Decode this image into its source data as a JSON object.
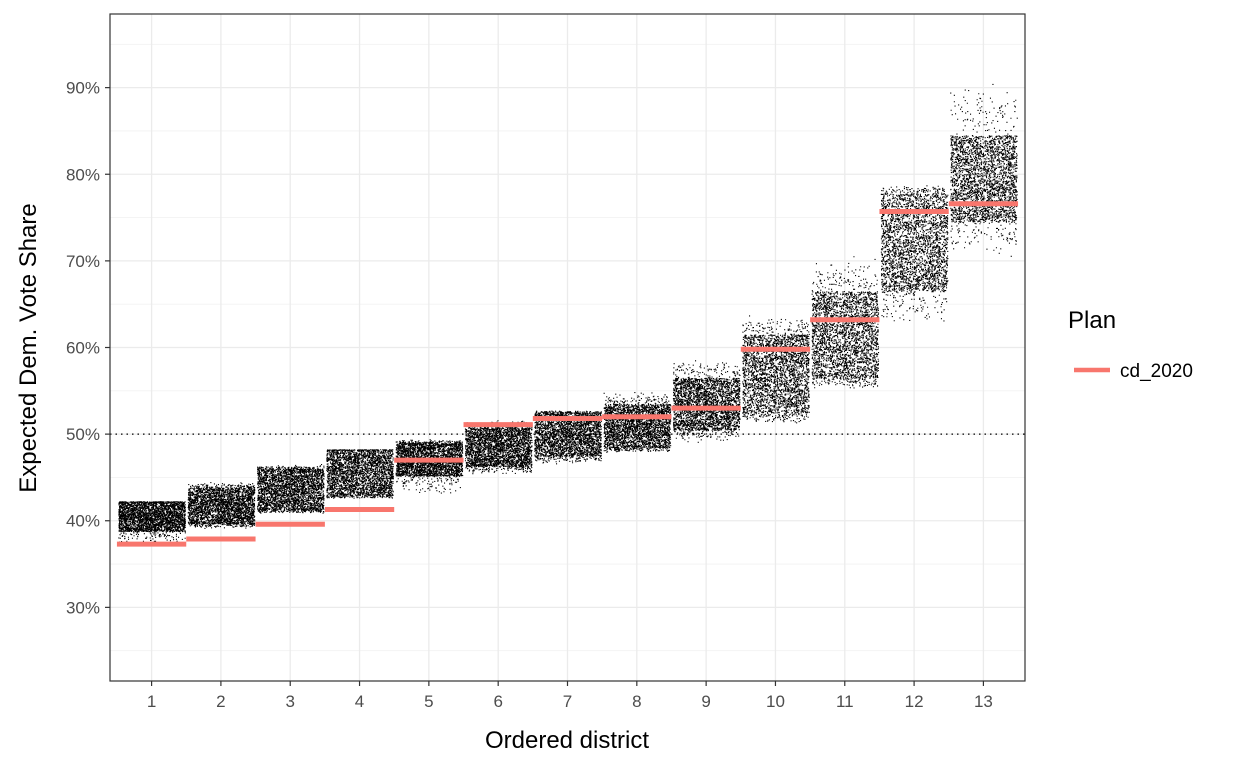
{
  "chart_data": {
    "type": "scatter",
    "title": "",
    "xlabel": "Ordered district",
    "ylabel": "Expected Dem. Vote Share",
    "categories": [
      "1",
      "2",
      "3",
      "4",
      "5",
      "6",
      "7",
      "8",
      "9",
      "10",
      "11",
      "12",
      "13"
    ],
    "ylim": [
      0.215,
      0.985
    ],
    "yticks": [
      0.3,
      0.4,
      0.5,
      0.6,
      0.7,
      0.8,
      0.9
    ],
    "ytick_labels": [
      "30%",
      "40%",
      "50%",
      "60%",
      "70%",
      "80%",
      "90%"
    ],
    "reference_line": {
      "y": 0.5,
      "style": "dotted"
    },
    "grid": true,
    "simulations": {
      "name": "",
      "color": "#000000",
      "ranges": [
        {
          "district": "1",
          "min": 0.365,
          "max": 0.423,
          "core_min": 0.388,
          "core_max": 0.422
        },
        {
          "district": "2",
          "min": 0.39,
          "max": 0.447,
          "core_min": 0.397,
          "core_max": 0.438
        },
        {
          "district": "3",
          "min": 0.408,
          "max": 0.467,
          "core_min": 0.413,
          "core_max": 0.46
        },
        {
          "district": "4",
          "min": 0.425,
          "max": 0.483,
          "core_min": 0.43,
          "core_max": 0.482
        },
        {
          "district": "5",
          "min": 0.425,
          "max": 0.495,
          "core_min": 0.452,
          "core_max": 0.49
        },
        {
          "district": "6",
          "min": 0.452,
          "max": 0.518,
          "core_min": 0.463,
          "core_max": 0.508
        },
        {
          "district": "7",
          "min": 0.465,
          "max": 0.528,
          "core_min": 0.475,
          "core_max": 0.525
        },
        {
          "district": "8",
          "min": 0.478,
          "max": 0.555,
          "core_min": 0.485,
          "core_max": 0.535
        },
        {
          "district": "9",
          "min": 0.488,
          "max": 0.593,
          "core_min": 0.505,
          "core_max": 0.565
        },
        {
          "district": "10",
          "min": 0.508,
          "max": 0.645,
          "core_min": 0.525,
          "core_max": 0.615
        },
        {
          "district": "11",
          "min": 0.548,
          "max": 0.712,
          "core_min": 0.565,
          "core_max": 0.665
        },
        {
          "district": "12",
          "min": 0.612,
          "max": 0.792,
          "core_min": 0.665,
          "core_max": 0.778
        },
        {
          "district": "13",
          "min": 0.695,
          "max": 0.925,
          "core_min": 0.745,
          "core_max": 0.845
        }
      ]
    },
    "series": [
      {
        "name": "cd_2020",
        "color": "#F8766D",
        "values": [
          0.373,
          0.379,
          0.396,
          0.413,
          0.47,
          0.511,
          0.518,
          0.52,
          0.53,
          0.598,
          0.632,
          0.757,
          0.766
        ]
      }
    ],
    "legend": {
      "title": "Plan",
      "placement": "right",
      "entries": [
        "cd_2020"
      ]
    }
  }
}
